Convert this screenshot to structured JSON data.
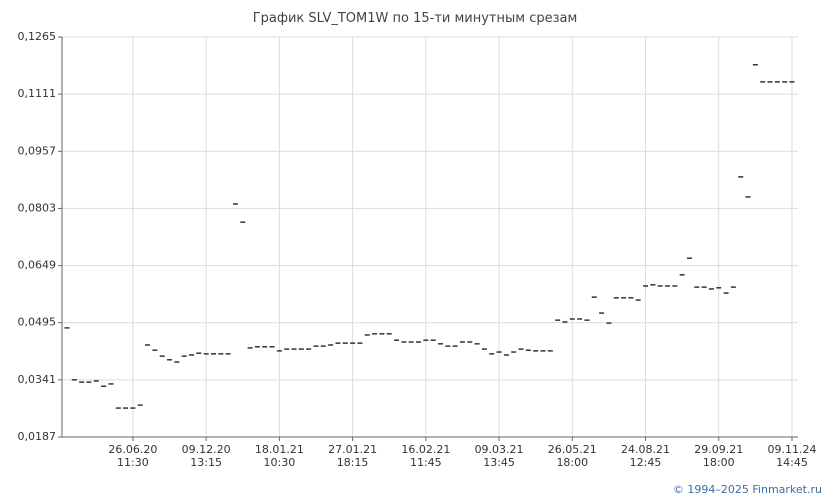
{
  "chart_data": {
    "type": "dash",
    "title": "График SLV_TOM1W по 15-ти минутным срезам",
    "footer": "© 1994–2025 Finmarket.ru",
    "color": "#000000",
    "grid": true,
    "ylim": [
      0.0187,
      0.1265
    ],
    "yticks": [
      {
        "value": 0.0187,
        "label": "0,0187"
      },
      {
        "value": 0.0341,
        "label": "0,0341"
      },
      {
        "value": 0.0495,
        "label": "0,0495"
      },
      {
        "value": 0.0649,
        "label": "0,0649"
      },
      {
        "value": 0.0803,
        "label": "0,0803"
      },
      {
        "value": 0.0957,
        "label": "0,0957"
      },
      {
        "value": 0.1111,
        "label": "0,1111"
      },
      {
        "value": 0.1265,
        "label": "0,1265"
      }
    ],
    "categories": [
      null,
      null,
      null,
      null,
      null,
      null,
      null,
      null,
      null,
      "26.06.20 11:30",
      null,
      null,
      null,
      null,
      null,
      null,
      null,
      null,
      null,
      "09.12.20 13:15",
      null,
      null,
      null,
      null,
      null,
      null,
      null,
      null,
      null,
      "18.01.21 10:30",
      null,
      null,
      null,
      null,
      null,
      null,
      null,
      null,
      null,
      "27.01.21 18:15",
      null,
      null,
      null,
      null,
      null,
      null,
      null,
      null,
      null,
      "16.02.21 11:45",
      null,
      null,
      null,
      null,
      null,
      null,
      null,
      null,
      null,
      "09.03.21 13:45",
      null,
      null,
      null,
      null,
      null,
      null,
      null,
      null,
      null,
      "26.05.21 18:00",
      null,
      null,
      null,
      null,
      null,
      null,
      null,
      null,
      null,
      "24.08.21 12:45",
      null,
      null,
      null,
      null,
      null,
      null,
      null,
      null,
      null,
      "29.09.21 18:00",
      null,
      null,
      null,
      null,
      null,
      null,
      null,
      null,
      null,
      "09.11.24 14:45"
    ],
    "values": [
      0.0481,
      0.0341,
      0.0335,
      0.0335,
      0.0338,
      0.0324,
      0.033,
      0.0265,
      0.0265,
      0.0265,
      0.0273,
      0.0435,
      0.0421,
      0.0405,
      0.0395,
      0.0389,
      0.0405,
      0.0408,
      0.0413,
      0.0411,
      0.0411,
      0.0411,
      0.0411,
      0.0815,
      0.0766,
      0.0427,
      0.043,
      0.043,
      0.043,
      0.0419,
      0.0424,
      0.0424,
      0.0424,
      0.0424,
      0.0432,
      0.0432,
      0.0435,
      0.044,
      0.044,
      0.044,
      0.044,
      0.0462,
      0.0465,
      0.0465,
      0.0465,
      0.0448,
      0.0443,
      0.0443,
      0.0443,
      0.0448,
      0.0448,
      0.0438,
      0.0432,
      0.0432,
      0.0443,
      0.0443,
      0.0438,
      0.0424,
      0.0411,
      0.0416,
      0.0408,
      0.0416,
      0.0424,
      0.0421,
      0.0419,
      0.0419,
      0.0419,
      0.0502,
      0.0497,
      0.0505,
      0.0505,
      0.0502,
      0.0564,
      0.0521,
      0.0494,
      0.0562,
      0.0562,
      0.0562,
      0.0556,
      0.0594,
      0.0597,
      0.0594,
      0.0594,
      0.0594,
      0.0624,
      0.0669,
      0.0591,
      0.0591,
      0.0586,
      0.0589,
      0.0575,
      0.0591,
      0.0888,
      0.0834,
      0.119,
      0.1144,
      0.1144,
      0.1144,
      0.1144,
      0.1144
    ]
  }
}
